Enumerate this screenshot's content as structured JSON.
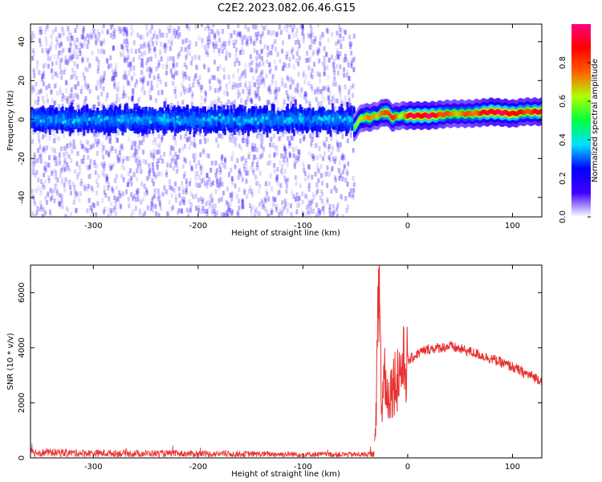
{
  "title": "C2E2.2023.082.06.46.G15",
  "chart_data": [
    {
      "type": "heatmap",
      "name": "spectrogram",
      "xlabel": "Height of straight line (km)",
      "ylabel": "Frequency (Hz)",
      "xlim": [
        -360,
        128
      ],
      "ylim": [
        -50,
        49
      ],
      "xticks": [
        -300,
        -200,
        -100,
        0,
        100
      ],
      "yticks": [
        -40,
        -20,
        0,
        20,
        40
      ],
      "colorbar": {
        "label": "Normalized spectral amplitude",
        "range": [
          0,
          1
        ],
        "ticks": [
          "0.0",
          "0.2",
          "0.4",
          "0.6",
          "0.8"
        ],
        "tick_values": [
          0.0,
          0.2,
          0.4,
          0.6,
          0.8
        ],
        "colormap": [
          "#ffffff",
          "#4000ff",
          "#0000ff",
          "#00e0ff",
          "#00ff40",
          "#b0ff00",
          "#ff6000",
          "#ff0000",
          "#ff0080"
        ]
      },
      "noise_region": {
        "x_range": [
          -360,
          -52
        ],
        "core_band_hz": [
          -12,
          12
        ]
      },
      "ridge": [
        {
          "x": -52,
          "freq": -4,
          "amp": 0.55
        },
        {
          "x": -45,
          "freq": 1,
          "amp": 0.6
        },
        {
          "x": -38,
          "freq": 1,
          "amp": 0.8
        },
        {
          "x": -30,
          "freq": 2,
          "amp": 0.6
        },
        {
          "x": -22,
          "freq": 4,
          "amp": 0.85
        },
        {
          "x": -15,
          "freq": 1,
          "amp": 0.8
        },
        {
          "x": -8,
          "freq": 2,
          "amp": 0.6
        },
        {
          "x": 0,
          "freq": 2,
          "amp": 0.9
        },
        {
          "x": 20,
          "freq": 2,
          "amp": 0.95
        },
        {
          "x": 40,
          "freq": 3,
          "amp": 0.7
        },
        {
          "x": 60,
          "freq": 3,
          "amp": 0.75
        },
        {
          "x": 80,
          "freq": 4,
          "amp": 0.95
        },
        {
          "x": 100,
          "freq": 3,
          "amp": 0.9
        },
        {
          "x": 110,
          "freq": 4,
          "amp": 0.8
        },
        {
          "x": 128,
          "freq": 4,
          "amp": 0.9
        }
      ]
    },
    {
      "type": "line",
      "name": "snr",
      "xlabel": "Height of straight line (km)",
      "ylabel": "SNR (10 * v/v)",
      "xlim": [
        -360,
        128
      ],
      "ylim": [
        0,
        7000
      ],
      "xticks": [
        -300,
        -200,
        -100,
        0,
        100
      ],
      "yticks": [
        0,
        2000,
        4000,
        6000
      ],
      "color": "#e8302e",
      "x": [
        -360,
        -300,
        -200,
        -100,
        -40,
        -32,
        -30,
        -27,
        -25,
        -22,
        -20,
        -15,
        -10,
        -5,
        0,
        10,
        20,
        30,
        40,
        50,
        60,
        80,
        100,
        110,
        120,
        128
      ],
      "y": [
        200,
        170,
        150,
        130,
        120,
        150,
        2000,
        6950,
        1500,
        3400,
        2200,
        2600,
        3000,
        3300,
        3500,
        3800,
        3950,
        4000,
        4050,
        3950,
        3850,
        3600,
        3300,
        3100,
        2950,
        2800
      ]
    }
  ]
}
